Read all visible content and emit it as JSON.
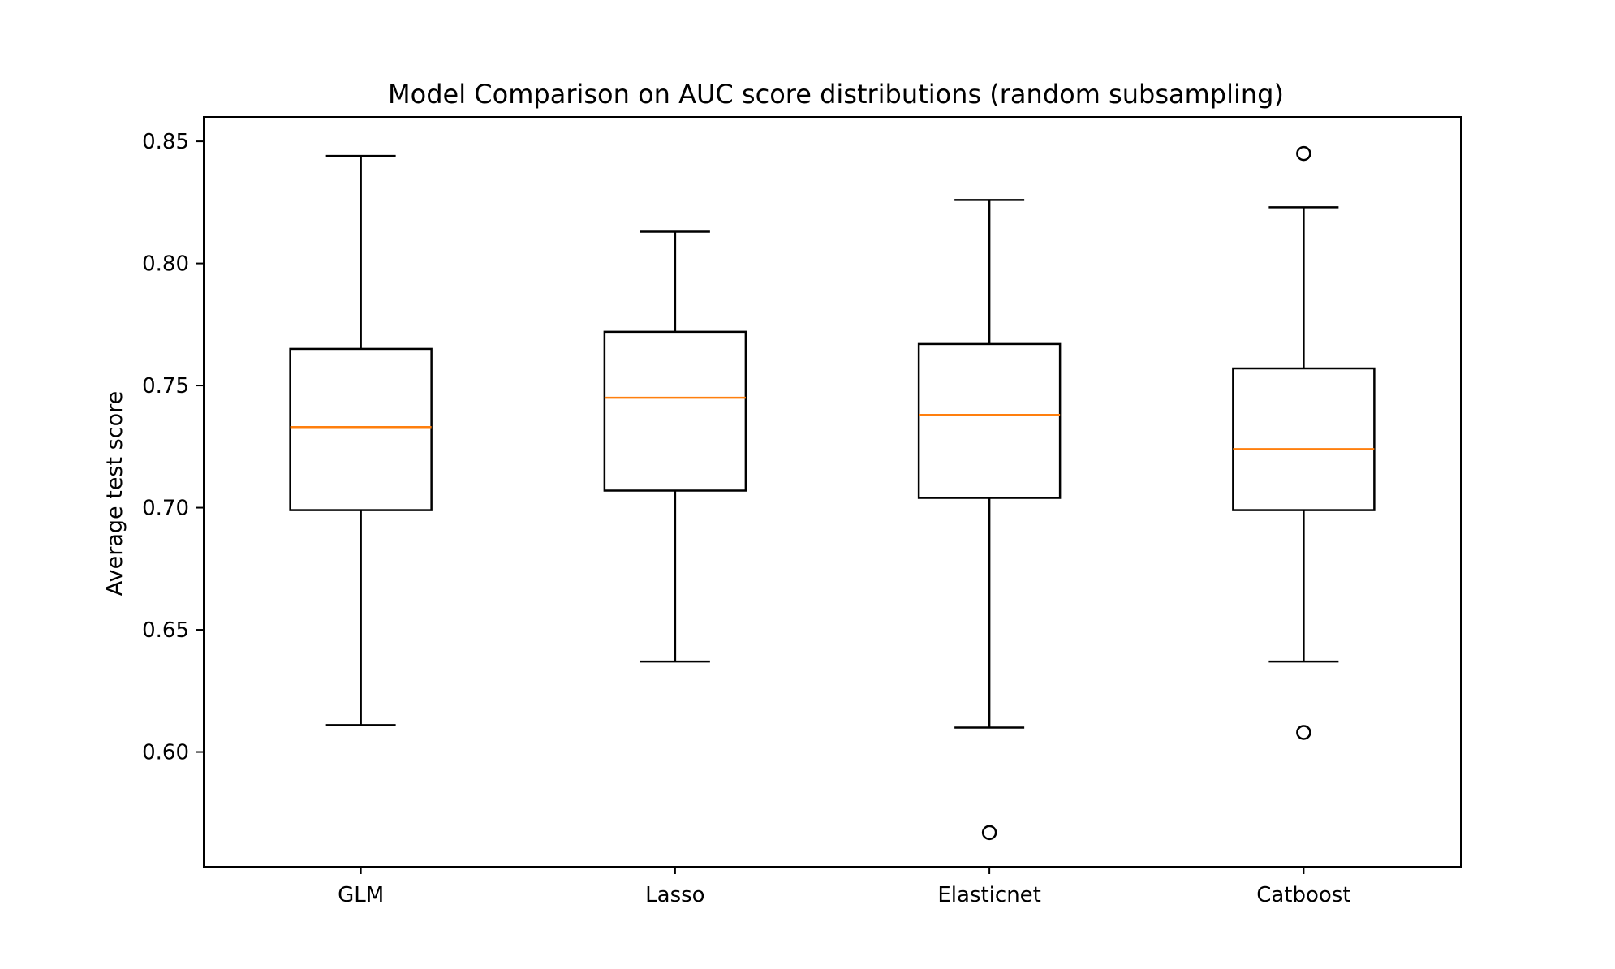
{
  "chart_data": {
    "type": "boxplot",
    "title": "Model Comparison on AUC score distributions (random subsampling)",
    "xlabel": "",
    "ylabel": "Average test score",
    "ylim": [
      0.553,
      0.86
    ],
    "yticks": [
      "0.60",
      "0.65",
      "0.70",
      "0.75",
      "0.80",
      "0.85"
    ],
    "grid": false,
    "categories": [
      "GLM",
      "Lasso",
      "Elasticnet",
      "Catboost"
    ],
    "boxes": [
      {
        "whisker_low": 0.611,
        "q1": 0.699,
        "median": 0.733,
        "q3": 0.765,
        "whisker_high": 0.844,
        "outliers": []
      },
      {
        "whisker_low": 0.637,
        "q1": 0.707,
        "median": 0.745,
        "q3": 0.772,
        "whisker_high": 0.813,
        "outliers": []
      },
      {
        "whisker_low": 0.61,
        "q1": 0.704,
        "median": 0.738,
        "q3": 0.767,
        "whisker_high": 0.826,
        "outliers": [
          0.567
        ]
      },
      {
        "whisker_low": 0.637,
        "q1": 0.699,
        "median": 0.724,
        "q3": 0.757,
        "whisker_high": 0.823,
        "outliers": [
          0.845,
          0.608
        ]
      }
    ],
    "colors": {
      "box": "#000000",
      "median": "#ff7f0e",
      "outlier": "#000000"
    }
  }
}
